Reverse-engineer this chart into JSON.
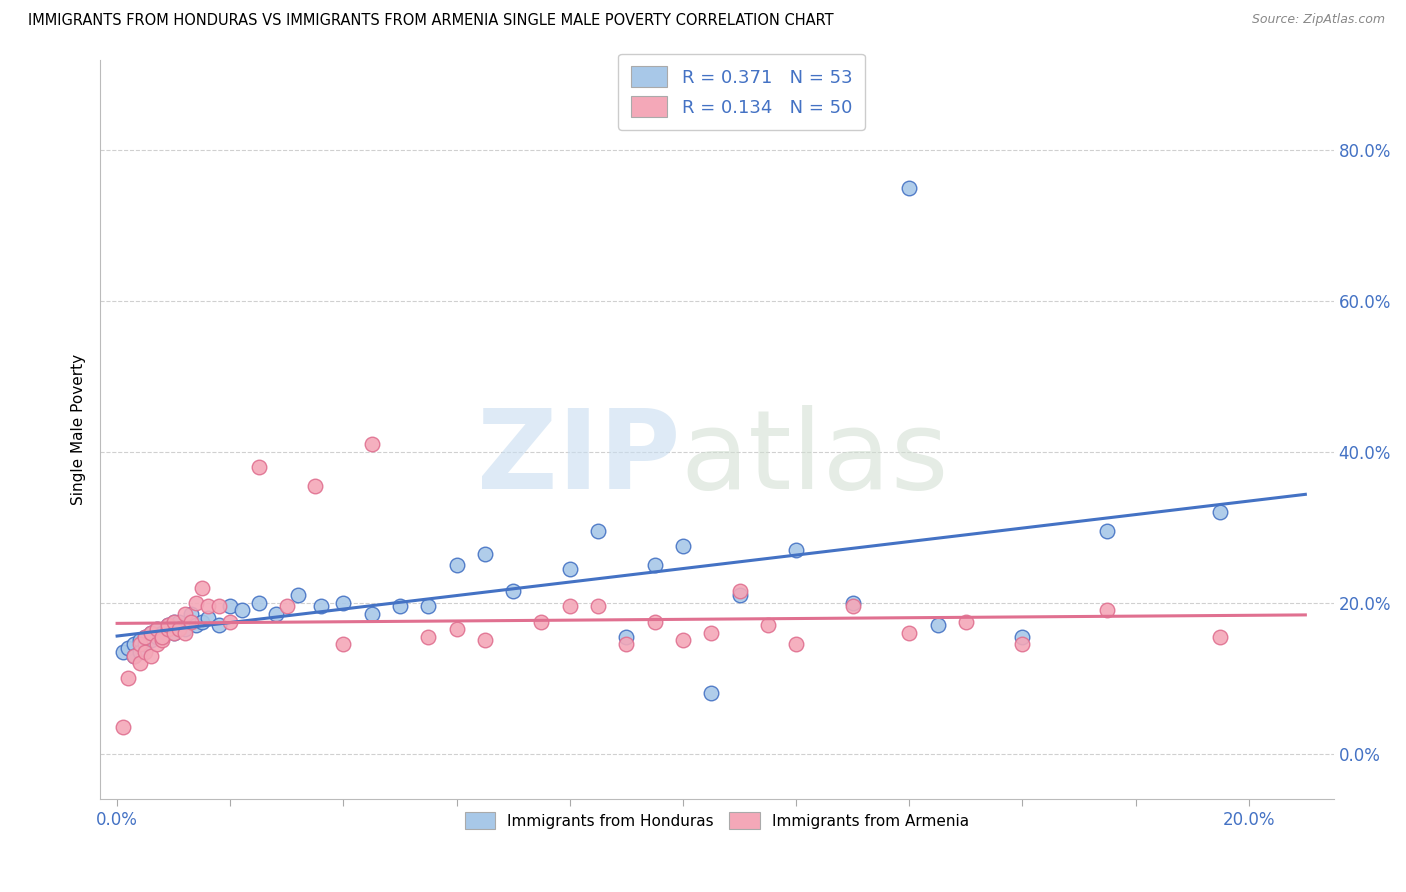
{
  "title": "IMMIGRANTS FROM HONDURAS VS IMMIGRANTS FROM ARMENIA SINGLE MALE POVERTY CORRELATION CHART",
  "source": "Source: ZipAtlas.com",
  "ylabel": "Single Male Poverty",
  "x_ticks": [
    0.0,
    0.02,
    0.04,
    0.06,
    0.08,
    0.1,
    0.12,
    0.14,
    0.16,
    0.18,
    0.2
  ],
  "y_ticks": [
    0.0,
    0.2,
    0.4,
    0.6,
    0.8
  ],
  "xlim": [
    -0.003,
    0.215
  ],
  "ylim": [
    -0.06,
    0.92
  ],
  "legend1_label": "R = 0.371   N = 53",
  "legend2_label": "R = 0.134   N = 50",
  "legend_bottom_label1": "Immigrants from Honduras",
  "legend_bottom_label2": "Immigrants from Armenia",
  "color_honduras": "#a8c8e8",
  "color_armenia": "#f4a8b8",
  "color_honduras_line": "#4472c4",
  "color_armenia_line": "#e07090",
  "honduras_x": [
    0.001,
    0.002,
    0.003,
    0.003,
    0.004,
    0.004,
    0.005,
    0.005,
    0.006,
    0.006,
    0.007,
    0.007,
    0.008,
    0.008,
    0.009,
    0.009,
    0.01,
    0.01,
    0.011,
    0.011,
    0.012,
    0.013,
    0.014,
    0.015,
    0.016,
    0.018,
    0.02,
    0.022,
    0.025,
    0.028,
    0.032,
    0.036,
    0.04,
    0.045,
    0.05,
    0.055,
    0.06,
    0.065,
    0.07,
    0.08,
    0.085,
    0.09,
    0.095,
    0.1,
    0.105,
    0.11,
    0.12,
    0.13,
    0.14,
    0.145,
    0.16,
    0.175,
    0.195
  ],
  "honduras_y": [
    0.135,
    0.14,
    0.145,
    0.13,
    0.15,
    0.135,
    0.145,
    0.155,
    0.15,
    0.16,
    0.155,
    0.165,
    0.16,
    0.155,
    0.165,
    0.17,
    0.16,
    0.175,
    0.17,
    0.175,
    0.165,
    0.185,
    0.17,
    0.175,
    0.18,
    0.17,
    0.195,
    0.19,
    0.2,
    0.185,
    0.21,
    0.195,
    0.2,
    0.185,
    0.195,
    0.195,
    0.25,
    0.265,
    0.215,
    0.245,
    0.295,
    0.155,
    0.25,
    0.275,
    0.08,
    0.21,
    0.27,
    0.2,
    0.75,
    0.17,
    0.155,
    0.295,
    0.32
  ],
  "armenia_x": [
    0.001,
    0.002,
    0.003,
    0.004,
    0.004,
    0.005,
    0.005,
    0.006,
    0.006,
    0.007,
    0.007,
    0.008,
    0.008,
    0.009,
    0.009,
    0.01,
    0.01,
    0.011,
    0.012,
    0.012,
    0.013,
    0.014,
    0.015,
    0.016,
    0.018,
    0.02,
    0.025,
    0.03,
    0.035,
    0.04,
    0.045,
    0.055,
    0.06,
    0.065,
    0.075,
    0.08,
    0.085,
    0.09,
    0.095,
    0.1,
    0.105,
    0.11,
    0.115,
    0.12,
    0.13,
    0.14,
    0.15,
    0.16,
    0.175,
    0.195
  ],
  "armenia_y": [
    0.035,
    0.1,
    0.13,
    0.12,
    0.145,
    0.135,
    0.155,
    0.13,
    0.16,
    0.145,
    0.165,
    0.15,
    0.155,
    0.165,
    0.17,
    0.16,
    0.175,
    0.165,
    0.16,
    0.185,
    0.175,
    0.2,
    0.22,
    0.195,
    0.195,
    0.175,
    0.38,
    0.195,
    0.355,
    0.145,
    0.41,
    0.155,
    0.165,
    0.15,
    0.175,
    0.195,
    0.195,
    0.145,
    0.175,
    0.15,
    0.16,
    0.215,
    0.17,
    0.145,
    0.195,
    0.16,
    0.175,
    0.145,
    0.19,
    0.155
  ]
}
